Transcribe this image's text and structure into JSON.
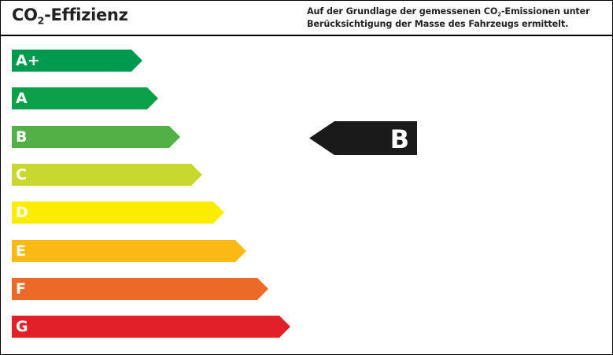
{
  "header": {
    "title_prefix": "CO",
    "title_sub": "2",
    "title_suffix": "-Effizienz",
    "description_line1_a": "Auf der Grundlage der gemessenen CO",
    "description_line1_sub": "2",
    "description_line1_b": "-Emissionen unter",
    "description_line2": "Berücksichtigung der Masse des Fahrzeugs ermittelt."
  },
  "classes": [
    {
      "label": "A+",
      "color": "#009a4e"
    },
    {
      "label": "A",
      "color": "#0da04a"
    },
    {
      "label": "B",
      "color": "#52b047"
    },
    {
      "label": "C",
      "color": "#c9d82f"
    },
    {
      "label": "D",
      "color": "#fced00"
    },
    {
      "label": "E",
      "color": "#fbb916"
    },
    {
      "label": "F",
      "color": "#ec6a27"
    },
    {
      "label": "G",
      "color": "#e2202a"
    }
  ],
  "rating": {
    "label": "B",
    "color": "#1a1a1a"
  }
}
